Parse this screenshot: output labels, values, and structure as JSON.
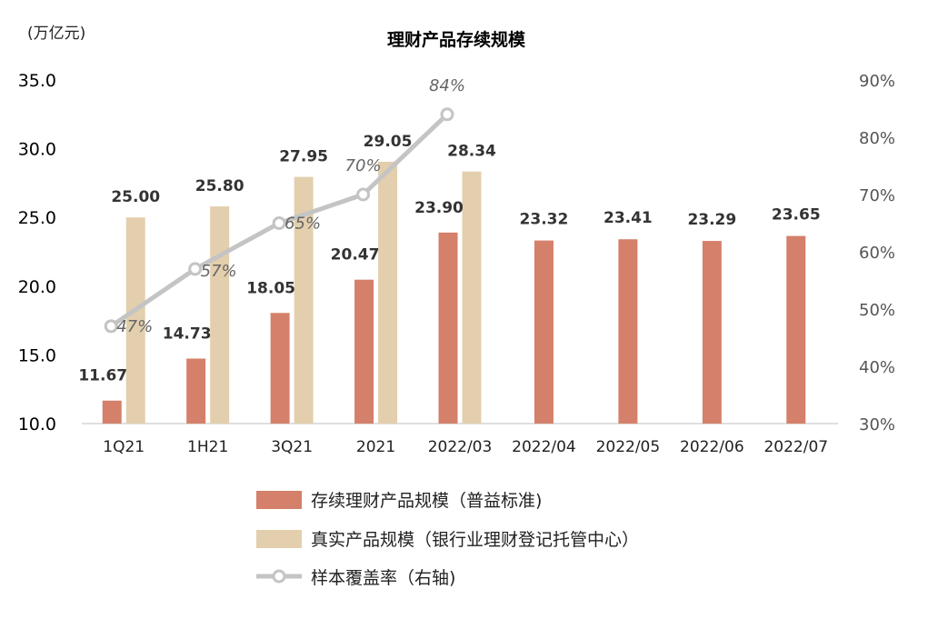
{
  "chart_data": {
    "type": "bar",
    "title": "理财产品存续规模",
    "unit_label": "(万亿元)",
    "categories": [
      "1Q21",
      "1H21",
      "3Q21",
      "2021",
      "2022/03",
      "2022/04",
      "2022/05",
      "2022/06",
      "2022/07"
    ],
    "y_left": {
      "min": 10.0,
      "max": 35.0,
      "ticks": [
        "10.0",
        "15.0",
        "20.0",
        "25.0",
        "30.0",
        "35.0"
      ]
    },
    "y_right": {
      "min": 30,
      "max": 90,
      "ticks": [
        "30%",
        "40%",
        "50%",
        "60%",
        "70%",
        "80%",
        "90%"
      ]
    },
    "series": [
      {
        "name": "存续理财产品规模（普益标准)",
        "type": "bar",
        "axis": "left",
        "color": "#d4806a",
        "values": [
          11.67,
          14.73,
          18.05,
          20.47,
          23.9,
          23.32,
          23.41,
          23.29,
          23.65
        ],
        "labels": [
          "11.67",
          "14.73",
          "18.05",
          "20.47",
          "23.90",
          "23.32",
          "23.41",
          "23.29",
          "23.65"
        ]
      },
      {
        "name": "真实产品规模（银行业理财登记托管中心）",
        "type": "bar",
        "axis": "left",
        "color": "#e3cfad",
        "values": [
          25.0,
          25.8,
          27.95,
          29.05,
          28.34,
          null,
          null,
          null,
          null
        ],
        "labels": [
          "25.00",
          "25.80",
          "27.95",
          "29.05",
          "28.34",
          "",
          "",
          "",
          ""
        ]
      },
      {
        "name": "样本覆盖率（右轴)",
        "type": "line",
        "axis": "right",
        "color": "#c4c4c4",
        "values": [
          47,
          57,
          65,
          70,
          84,
          null,
          null,
          null,
          null
        ],
        "labels": [
          "47%",
          "57%",
          "65%",
          "70%",
          "84%",
          "",
          "",
          "",
          ""
        ]
      }
    ],
    "legend_position": "bottom-left",
    "grid": false
  }
}
